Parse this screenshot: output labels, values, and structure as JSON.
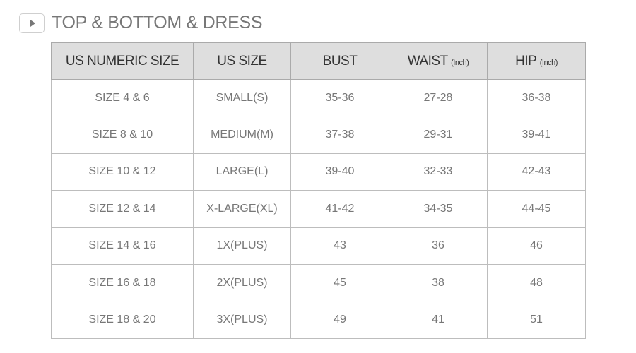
{
  "title": "TOP & BOTTOM & DRESS",
  "icon": "play-icon",
  "table": {
    "headers": [
      {
        "label": "US NUMERIC SIZE",
        "unit": ""
      },
      {
        "label": "US SIZE",
        "unit": ""
      },
      {
        "label": "BUST",
        "unit": ""
      },
      {
        "label": "WAIST",
        "unit": "(Inch)"
      },
      {
        "label": "HIP",
        "unit": "(Inch)"
      }
    ],
    "rows": [
      [
        "SIZE 4 & 6",
        "SMALL(S)",
        "35-36",
        "27-28",
        "36-38"
      ],
      [
        "SIZE 8 & 10",
        "MEDIUM(M)",
        "37-38",
        "29-31",
        "39-41"
      ],
      [
        "SIZE 10 & 12",
        "LARGE(L)",
        "39-40",
        "32-33",
        "42-43"
      ],
      [
        "SIZE 12 & 14",
        "X-LARGE(XL)",
        "41-42",
        "34-35",
        "44-45"
      ],
      [
        "SIZE 14 & 16",
        "1X(PLUS)",
        "43",
        "36",
        "46"
      ],
      [
        "SIZE 16 & 18",
        "2X(PLUS)",
        "45",
        "38",
        "48"
      ],
      [
        "SIZE 18 & 20",
        "3X(PLUS)",
        "49",
        "41",
        "51"
      ]
    ]
  }
}
